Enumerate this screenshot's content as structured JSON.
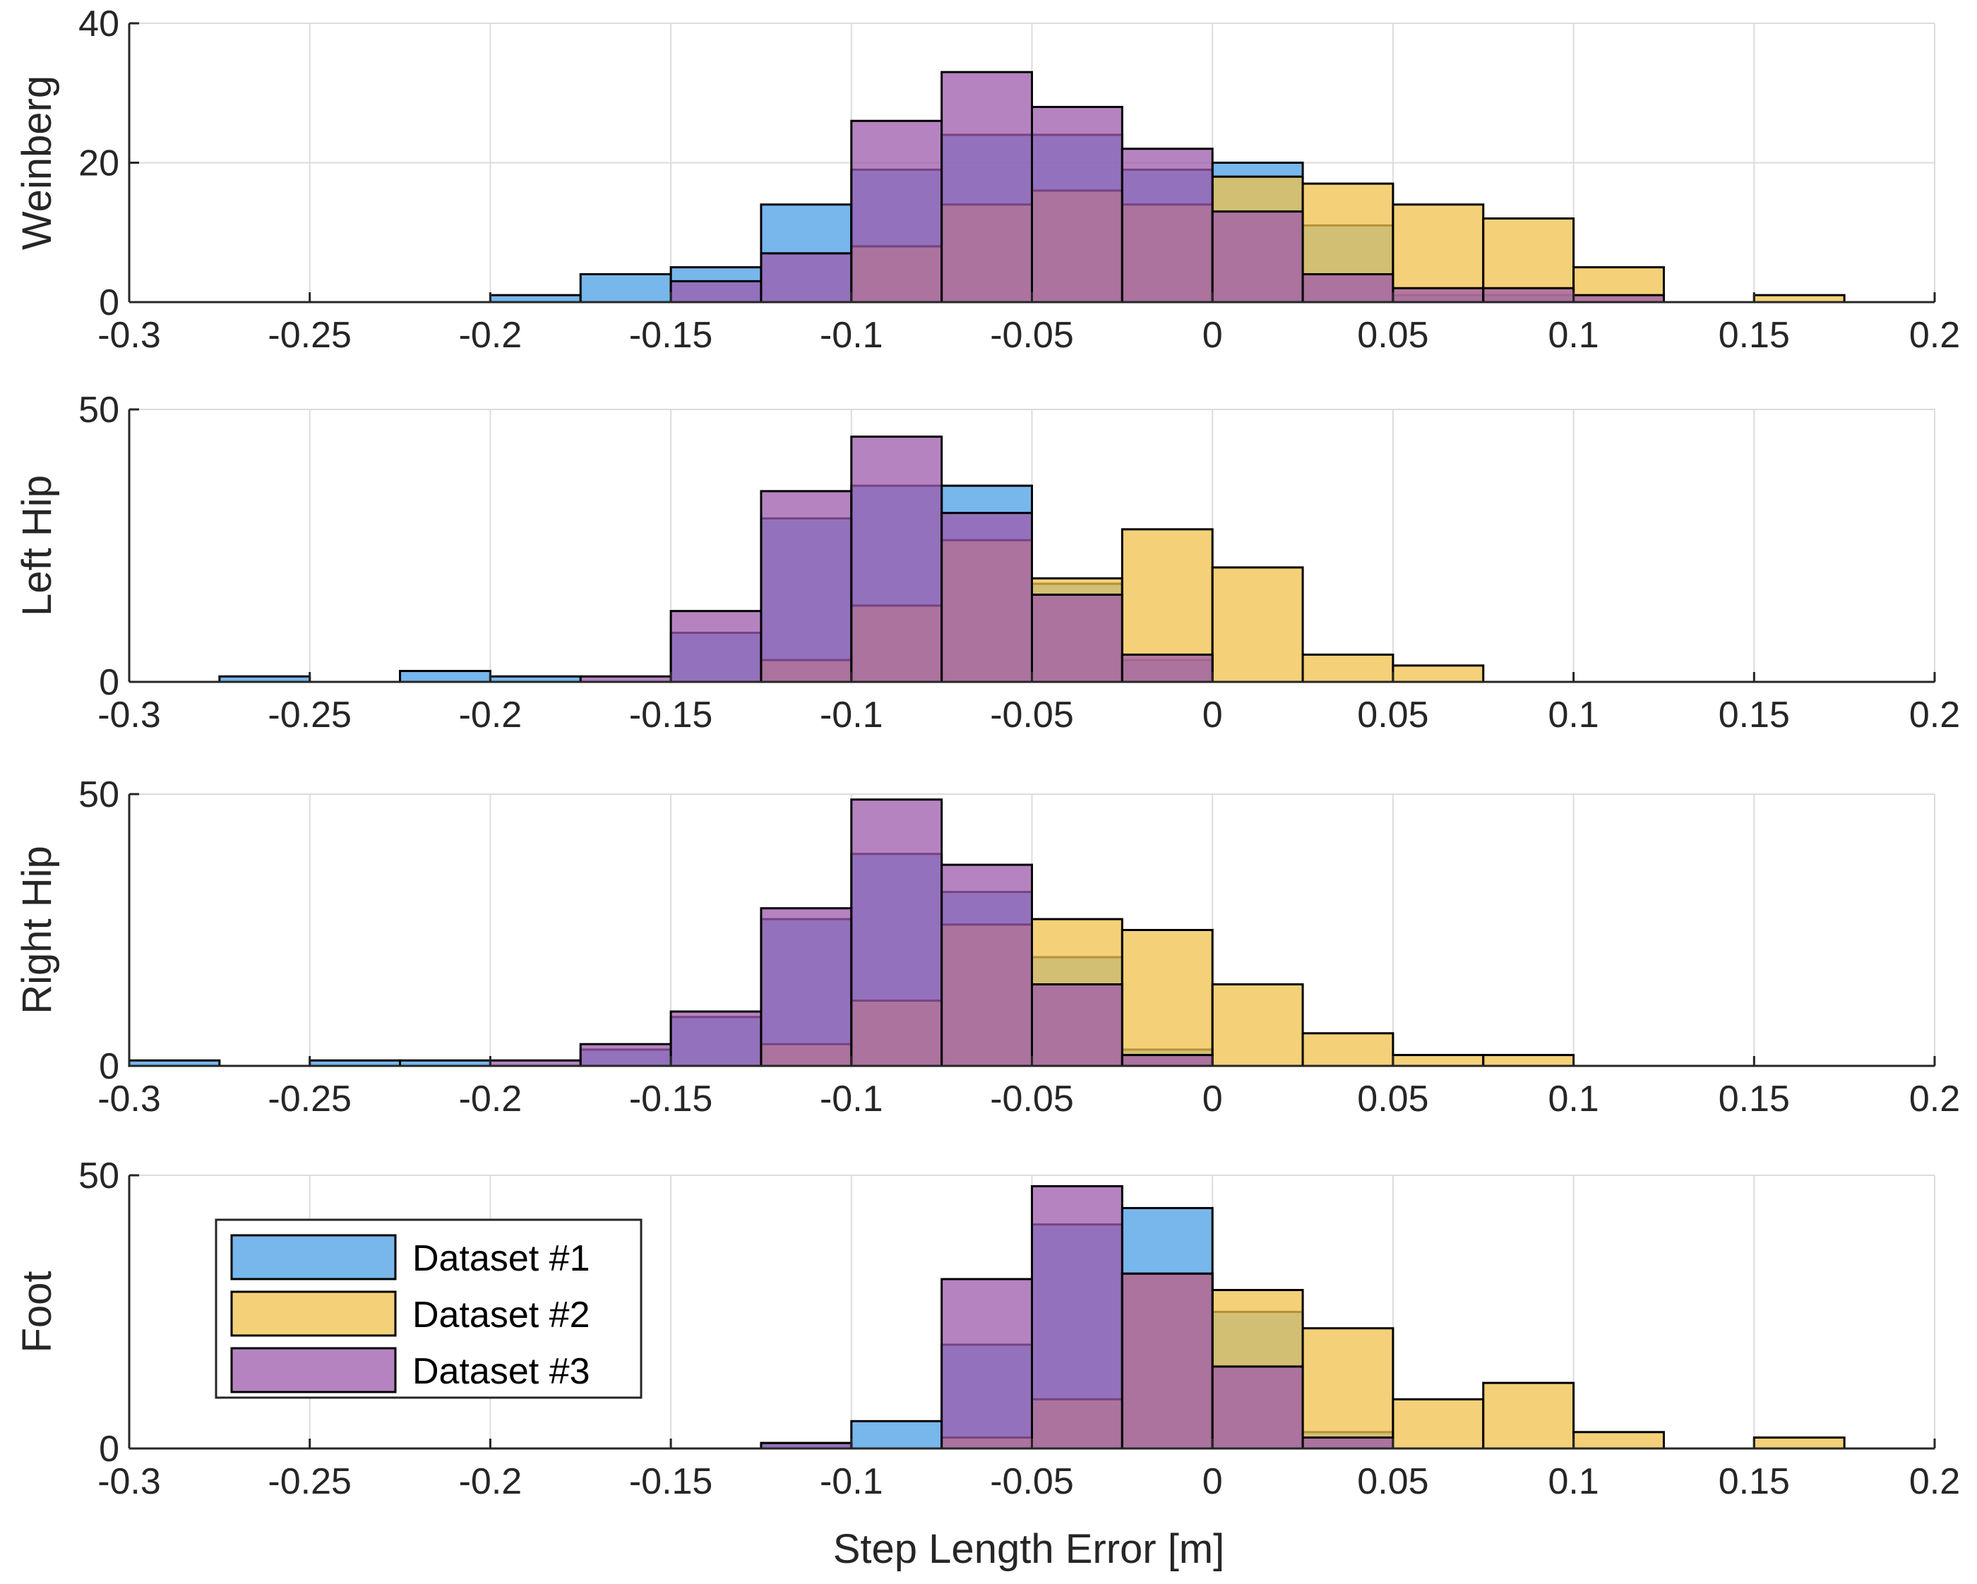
{
  "chart_data": {
    "type": "bar",
    "subtype": "overlaid histograms",
    "xlabel": "Step Length Error [m]",
    "xlim": [
      -0.3,
      0.2
    ],
    "xticks": [
      -0.3,
      -0.25,
      -0.2,
      -0.15,
      -0.1,
      -0.05,
      0,
      0.05,
      0.1,
      0.15,
      0.2
    ],
    "xtick_labels": [
      "-0.3",
      "-0.25",
      "-0.2",
      "-0.15",
      "-0.1",
      "-0.05",
      "0",
      "0.05",
      "0.1",
      "0.15",
      "0.2"
    ],
    "bin_width": 0.025,
    "grid": true,
    "legend": {
      "placement": "bottom panel, left",
      "entries": [
        {
          "name": "Dataset #1",
          "color": "#4a9fe6"
        },
        {
          "name": "Dataset #2",
          "color": "#f0c24b"
        },
        {
          "name": "Dataset #3",
          "color": "#9e5aac"
        }
      ]
    },
    "panels": [
      {
        "ylabel": "Weinberg",
        "ylim": [
          0,
          40
        ],
        "yticks": [
          0,
          20,
          40
        ],
        "series": [
          {
            "name": "Dataset #1",
            "bins": [
              [
                -0.2,
                1
              ],
              [
                -0.175,
                4
              ],
              [
                -0.15,
                5
              ],
              [
                -0.125,
                14
              ],
              [
                -0.1,
                19
              ],
              [
                -0.075,
                24
              ],
              [
                -0.05,
                24
              ],
              [
                -0.025,
                19
              ],
              [
                0,
                20
              ],
              [
                0.025,
                11
              ],
              [
                0.05,
                1
              ],
              [
                0.075,
                1
              ]
            ]
          },
          {
            "name": "Dataset #2",
            "bins": [
              [
                -0.1,
                8
              ],
              [
                -0.075,
                14
              ],
              [
                -0.05,
                16
              ],
              [
                -0.025,
                14
              ],
              [
                0,
                18
              ],
              [
                0.025,
                17
              ],
              [
                0.05,
                14
              ],
              [
                0.075,
                12
              ],
              [
                0.1,
                5
              ],
              [
                0.15,
                1
              ]
            ]
          },
          {
            "name": "Dataset #3",
            "bins": [
              [
                -0.15,
                3
              ],
              [
                -0.125,
                7
              ],
              [
                -0.1,
                26
              ],
              [
                -0.075,
                33
              ],
              [
                -0.05,
                28
              ],
              [
                -0.025,
                22
              ],
              [
                0,
                13
              ],
              [
                0.025,
                4
              ],
              [
                0.05,
                2
              ],
              [
                0.075,
                2
              ],
              [
                0.1,
                1
              ]
            ]
          }
        ]
      },
      {
        "ylabel": "Left Hip",
        "ylim": [
          0,
          50
        ],
        "yticks": [
          0,
          50
        ],
        "series": [
          {
            "name": "Dataset #1",
            "bins": [
              [
                -0.275,
                1
              ],
              [
                -0.225,
                2
              ],
              [
                -0.2,
                1
              ],
              [
                -0.15,
                9
              ],
              [
                -0.125,
                30
              ],
              [
                -0.1,
                36
              ],
              [
                -0.075,
                36
              ],
              [
                -0.05,
                18
              ],
              [
                -0.025,
                4
              ]
            ]
          },
          {
            "name": "Dataset #2",
            "bins": [
              [
                -0.125,
                4
              ],
              [
                -0.1,
                14
              ],
              [
                -0.075,
                26
              ],
              [
                -0.05,
                19
              ],
              [
                -0.025,
                28
              ],
              [
                0,
                21
              ],
              [
                0.025,
                5
              ],
              [
                0.05,
                3
              ]
            ]
          },
          {
            "name": "Dataset #3",
            "bins": [
              [
                -0.175,
                1
              ],
              [
                -0.15,
                13
              ],
              [
                -0.125,
                35
              ],
              [
                -0.1,
                45
              ],
              [
                -0.075,
                31
              ],
              [
                -0.05,
                16
              ],
              [
                -0.025,
                5
              ]
            ]
          }
        ]
      },
      {
        "ylabel": "Right Hip",
        "ylim": [
          0,
          50
        ],
        "yticks": [
          0,
          50
        ],
        "series": [
          {
            "name": "Dataset #1",
            "bins": [
              [
                -0.3,
                1
              ],
              [
                -0.25,
                1
              ],
              [
                -0.225,
                1
              ],
              [
                -0.175,
                3
              ],
              [
                -0.15,
                9
              ],
              [
                -0.125,
                27
              ],
              [
                -0.1,
                39
              ],
              [
                -0.075,
                32
              ],
              [
                -0.05,
                20
              ],
              [
                -0.025,
                3
              ]
            ]
          },
          {
            "name": "Dataset #2",
            "bins": [
              [
                -0.125,
                4
              ],
              [
                -0.1,
                12
              ],
              [
                -0.075,
                26
              ],
              [
                -0.05,
                27
              ],
              [
                -0.025,
                25
              ],
              [
                0,
                15
              ],
              [
                0.025,
                6
              ],
              [
                0.05,
                2
              ],
              [
                0.075,
                2
              ]
            ]
          },
          {
            "name": "Dataset #3",
            "bins": [
              [
                -0.2,
                1
              ],
              [
                -0.175,
                4
              ],
              [
                -0.15,
                10
              ],
              [
                -0.125,
                29
              ],
              [
                -0.1,
                49
              ],
              [
                -0.075,
                37
              ],
              [
                -0.05,
                15
              ],
              [
                -0.025,
                2
              ]
            ]
          }
        ]
      },
      {
        "ylabel": "Foot",
        "ylim": [
          0,
          50
        ],
        "yticks": [
          0,
          50
        ],
        "series": [
          {
            "name": "Dataset #1",
            "bins": [
              [
                -0.125,
                1
              ],
              [
                -0.1,
                5
              ],
              [
                -0.075,
                19
              ],
              [
                -0.05,
                41
              ],
              [
                -0.025,
                44
              ],
              [
                0,
                25
              ],
              [
                0.025,
                3
              ]
            ]
          },
          {
            "name": "Dataset #2",
            "bins": [
              [
                -0.075,
                2
              ],
              [
                -0.05,
                9
              ],
              [
                -0.025,
                32
              ],
              [
                0,
                29
              ],
              [
                0.025,
                22
              ],
              [
                0.05,
                9
              ],
              [
                0.075,
                12
              ],
              [
                0.1,
                3
              ],
              [
                0.15,
                2
              ]
            ]
          },
          {
            "name": "Dataset #3",
            "bins": [
              [
                -0.125,
                1
              ],
              [
                -0.075,
                31
              ],
              [
                -0.05,
                48
              ],
              [
                -0.025,
                32
              ],
              [
                0,
                15
              ],
              [
                0.025,
                2
              ]
            ]
          }
        ]
      }
    ]
  }
}
